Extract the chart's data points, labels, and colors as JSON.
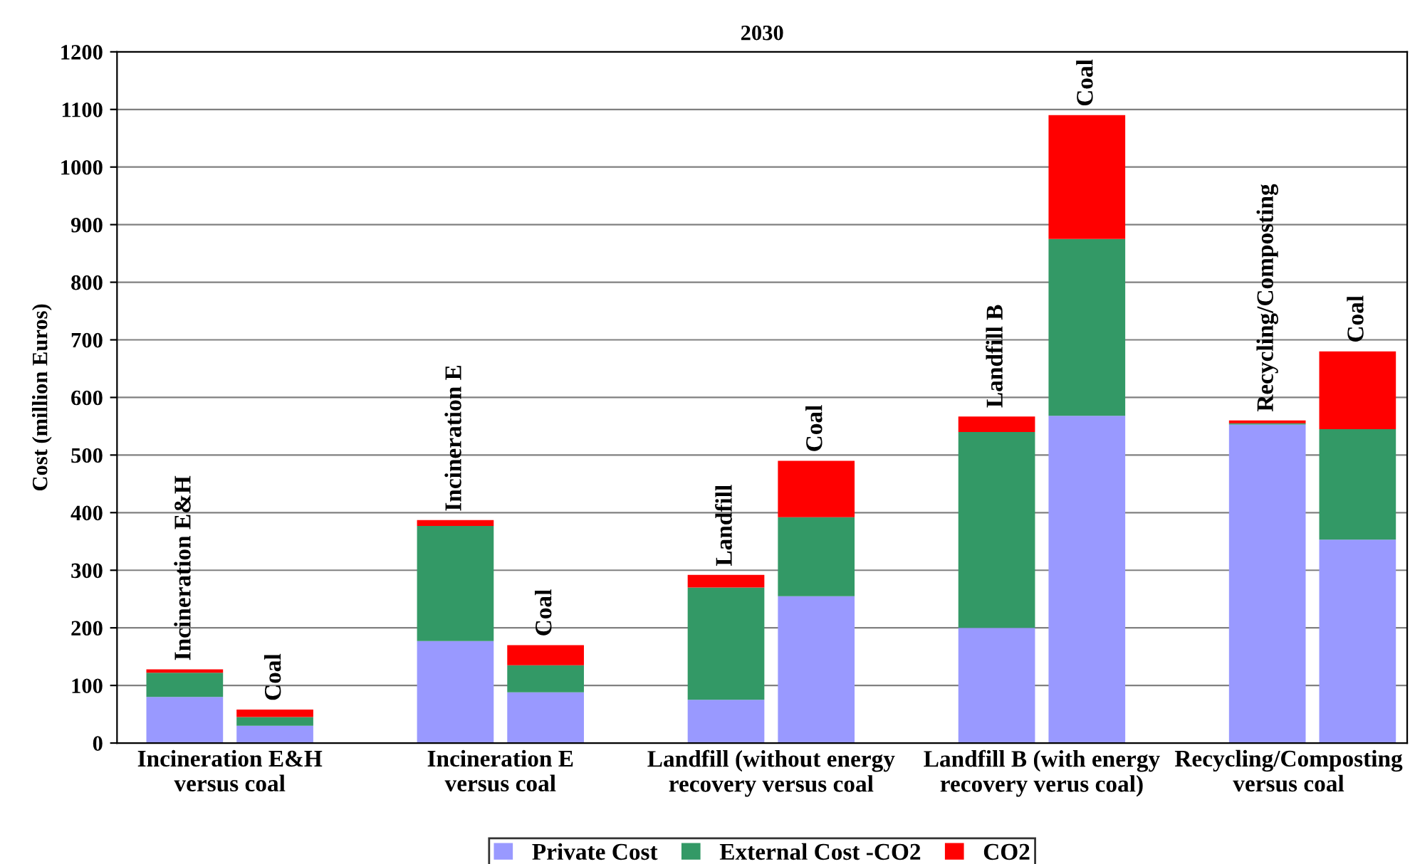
{
  "chart_data": {
    "type": "bar",
    "title": "2030",
    "ylabel": "Cost (million Euros)",
    "categories": [
      "Incineration E&H",
      "Coal",
      "Incineration E",
      "Coal",
      "Landfill",
      "Coal",
      "Landfill B",
      "Coal",
      "Recycling/Composting",
      "Coal"
    ],
    "stacked": true,
    "series": [
      {
        "name": "Private Cost",
        "color": "#9999ff",
        "values": [
          80,
          30,
          177,
          88,
          75,
          255,
          200,
          568,
          553,
          353
        ]
      },
      {
        "name": "External Cost -CO2",
        "color": "#339966",
        "values": [
          42,
          15,
          200,
          47,
          195,
          137,
          340,
          307,
          2,
          192
        ]
      },
      {
        "name": "CO2",
        "color": "#ff0000",
        "values": [
          6,
          13,
          10,
          35,
          22,
          98,
          27,
          215,
          5,
          135
        ]
      }
    ],
    "annotations": [
      "Incineration E&H\nversus coal",
      "Incineration E\nversus coal",
      "Landfill (without energy\nrecovery versus coal",
      "Landfill B (with energy\nrecovery verus coal)",
      "Recycling/Composting\nversus coal"
    ],
    "ylim": [
      0,
      1200
    ],
    "yticks": [
      0,
      100,
      200,
      300,
      400,
      500,
      600,
      700,
      800,
      900,
      1000,
      1100,
      1200
    ],
    "grid": "y",
    "legend": "bottom"
  }
}
